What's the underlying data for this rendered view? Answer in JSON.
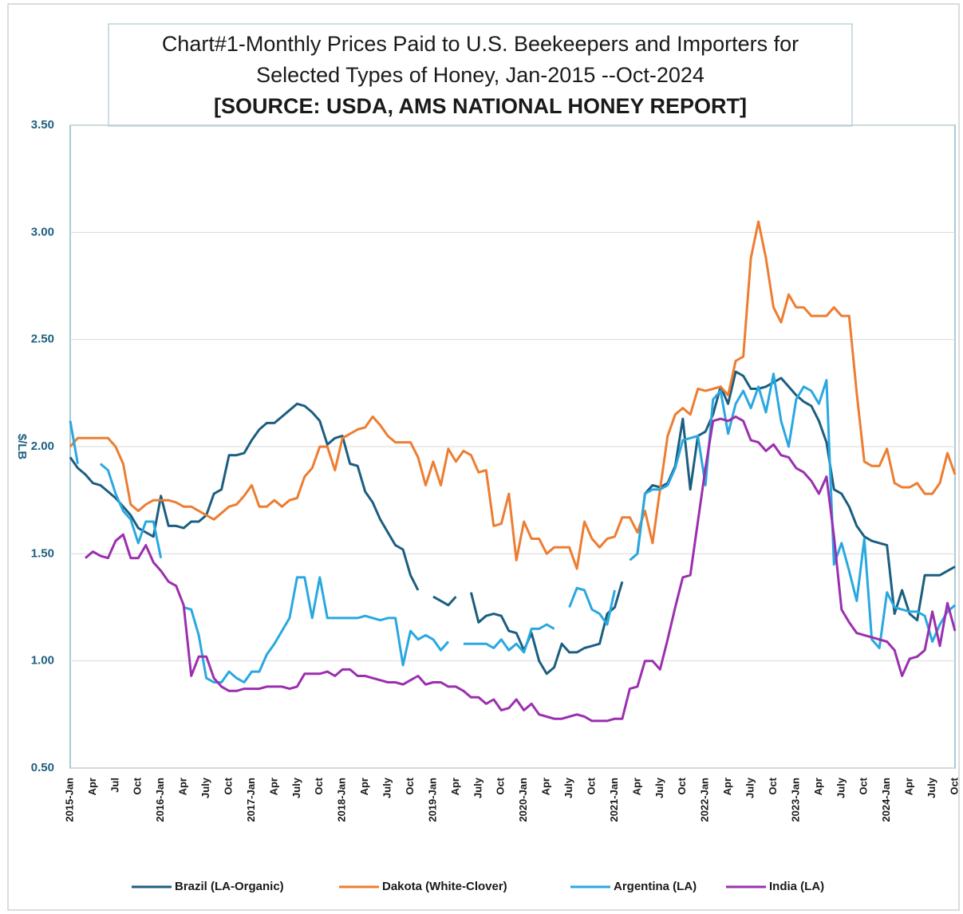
{
  "chart_data": {
    "type": "line",
    "title": [
      "Chart#1-Monthly Prices Paid to U.S. Beekeepers and Importers for",
      "Selected Types of Honey, Jan-2015 --Oct-2024"
    ],
    "subtitle": "[SOURCE: USDA, AMS  NATIONAL HONEY REPORT]",
    "y_label": "$/LB",
    "ylim": [
      0.5,
      3.5
    ],
    "yticks": [
      {
        "value": 0.5,
        "label": "0.50"
      },
      {
        "value": 1,
        "label": "1.00"
      },
      {
        "value": 1.5,
        "label": "1.50"
      },
      {
        "value": 2,
        "label": "2.00"
      },
      {
        "value": 2.5,
        "label": "2.50"
      },
      {
        "value": 3,
        "label": "3.00"
      },
      {
        "value": 3.5,
        "label": "3.50"
      }
    ],
    "grid": true,
    "legend": "bottom",
    "categories": [
      "2015-Jan",
      null,
      null,
      "Apr",
      null,
      null,
      "Jul",
      null,
      null,
      "Oct",
      null,
      null,
      "2016-Jan",
      null,
      null,
      "Apr",
      null,
      null,
      "July",
      null,
      null,
      "Oct",
      null,
      null,
      "2017-Jan",
      null,
      null,
      "Apr",
      null,
      null,
      "July",
      null,
      null,
      "Oct",
      null,
      null,
      "2018-Jan",
      null,
      null,
      "Apr",
      null,
      null,
      "July",
      null,
      null,
      "Oct",
      null,
      null,
      "2019-Jan",
      null,
      null,
      "Apr",
      null,
      null,
      "July",
      null,
      null,
      "Oct",
      null,
      null,
      "2020-Jan",
      null,
      null,
      "Apr",
      null,
      null,
      "July",
      null,
      null,
      "Oct",
      null,
      null,
      "2021-Jan",
      null,
      null,
      "Apr",
      null,
      null,
      "July",
      null,
      null,
      "Oct",
      null,
      null,
      "2022-Jan",
      null,
      null,
      "Apr",
      null,
      null,
      "July",
      null,
      null,
      "Oct",
      null,
      null,
      "2023-Jan",
      null,
      null,
      "Apr",
      null,
      null,
      "July",
      null,
      null,
      "Oct",
      null,
      null,
      "2024-Jan",
      null,
      null,
      "Apr",
      null,
      null,
      "July",
      null,
      null,
      "Oct"
    ],
    "series": [
      {
        "name": "Brazil (LA-Organic)",
        "color": "#1b5e80",
        "values": [
          1.95,
          1.9,
          1.87,
          1.83,
          1.82,
          1.79,
          1.76,
          1.72,
          1.68,
          1.62,
          1.6,
          1.58,
          1.77,
          1.63,
          1.63,
          1.62,
          1.65,
          1.65,
          1.68,
          1.78,
          1.8,
          1.96,
          1.96,
          1.97,
          2.03,
          2.08,
          2.11,
          2.11,
          2.14,
          2.17,
          2.2,
          2.19,
          2.16,
          2.12,
          2.01,
          2.04,
          2.05,
          1.92,
          1.91,
          1.79,
          1.74,
          1.66,
          1.6,
          1.54,
          1.52,
          1.4,
          1.33,
          null,
          1.3,
          1.28,
          1.26,
          1.3,
          null,
          1.32,
          1.18,
          1.21,
          1.22,
          1.21,
          1.14,
          1.13,
          1.05,
          1.13,
          1.0,
          0.94,
          0.97,
          1.08,
          1.04,
          1.04,
          1.06,
          1.07,
          1.08,
          1.22,
          1.25,
          1.37,
          null,
          1.5,
          1.78,
          1.82,
          1.81,
          1.83,
          1.91,
          2.13,
          1.8,
          2.05,
          2.07,
          2.15,
          2.28,
          2.2,
          2.35,
          2.33,
          2.27,
          2.27,
          2.28,
          2.3,
          2.32,
          2.28,
          2.24,
          2.21,
          2.19,
          2.12,
          2.02,
          1.8,
          1.78,
          1.72,
          1.63,
          1.58,
          1.56,
          1.55,
          1.54,
          1.22,
          1.33,
          1.22,
          1.19,
          1.4,
          1.4,
          1.4,
          1.42,
          1.44
        ]
      },
      {
        "name": "Dakota (White-Clover)",
        "color": "#ed7d31",
        "values": [
          2.0,
          2.04,
          2.04,
          2.04,
          2.04,
          2.04,
          2.0,
          1.92,
          1.73,
          1.7,
          1.73,
          1.75,
          1.75,
          1.75,
          1.74,
          1.72,
          1.72,
          1.7,
          1.68,
          1.66,
          1.69,
          1.72,
          1.73,
          1.77,
          1.82,
          1.72,
          1.72,
          1.75,
          1.72,
          1.75,
          1.76,
          1.86,
          1.9,
          2.0,
          2.0,
          1.89,
          2.04,
          2.06,
          2.08,
          2.09,
          2.14,
          2.1,
          2.05,
          2.02,
          2.02,
          2.02,
          1.95,
          1.82,
          1.93,
          1.82,
          1.99,
          1.93,
          1.98,
          1.96,
          1.88,
          1.89,
          1.63,
          1.64,
          1.78,
          1.47,
          1.65,
          1.57,
          1.57,
          1.5,
          1.53,
          1.53,
          1.53,
          1.43,
          1.65,
          1.57,
          1.53,
          1.57,
          1.58,
          1.67,
          1.67,
          1.6,
          1.7,
          1.55,
          1.8,
          2.05,
          2.15,
          2.18,
          2.15,
          2.27,
          2.26,
          2.27,
          2.28,
          2.24,
          2.4,
          2.42,
          2.88,
          3.05,
          2.88,
          2.65,
          2.58,
          2.71,
          2.65,
          2.65,
          2.61,
          2.61,
          2.61,
          2.65,
          2.61,
          2.61,
          2.25,
          1.93,
          1.91,
          1.91,
          1.99,
          1.83,
          1.81,
          1.81,
          1.83,
          1.78,
          1.78,
          1.83,
          1.97,
          1.87
        ]
      },
      {
        "name": "Argentina (LA)",
        "color": "#29a8e0",
        "values": [
          2.12,
          1.92,
          null,
          null,
          1.92,
          1.89,
          1.78,
          1.7,
          1.66,
          1.55,
          1.65,
          1.65,
          1.48,
          null,
          null,
          1.25,
          1.24,
          1.12,
          0.92,
          0.9,
          0.9,
          0.95,
          0.92,
          0.9,
          0.95,
          0.95,
          1.03,
          1.08,
          1.14,
          1.2,
          1.39,
          1.39,
          1.2,
          1.39,
          1.2,
          1.2,
          1.2,
          1.2,
          1.2,
          1.21,
          1.2,
          1.19,
          1.2,
          1.2,
          0.98,
          1.14,
          1.1,
          1.12,
          1.1,
          1.05,
          1.09,
          null,
          1.08,
          1.08,
          1.08,
          1.08,
          1.06,
          1.1,
          1.05,
          1.08,
          1.04,
          1.15,
          1.15,
          1.17,
          1.15,
          null,
          1.25,
          1.34,
          1.33,
          1.24,
          1.22,
          1.17,
          1.33,
          null,
          1.47,
          1.5,
          1.78,
          1.8,
          1.8,
          1.82,
          1.9,
          2.03,
          2.04,
          2.05,
          1.82,
          2.22,
          2.26,
          2.06,
          2.2,
          2.26,
          2.18,
          2.28,
          2.16,
          2.34,
          2.12,
          2.0,
          2.22,
          2.28,
          2.26,
          2.2,
          2.31,
          1.45,
          1.55,
          1.42,
          1.28,
          1.57,
          1.1,
          1.06,
          1.32,
          1.25,
          1.24,
          1.23,
          1.23,
          1.21,
          1.09,
          1.17,
          1.23,
          1.26
        ]
      },
      {
        "name": "India (LA)",
        "color": "#9b2fae",
        "values": [
          null,
          null,
          1.48,
          1.51,
          1.49,
          1.48,
          1.56,
          1.59,
          1.48,
          1.48,
          1.54,
          1.46,
          1.42,
          1.37,
          1.35,
          1.26,
          0.93,
          1.02,
          1.02,
          0.92,
          0.88,
          0.86,
          0.86,
          0.87,
          0.87,
          0.87,
          0.88,
          0.88,
          0.88,
          0.87,
          0.88,
          0.94,
          0.94,
          0.94,
          0.95,
          0.93,
          0.96,
          0.96,
          0.93,
          0.93,
          0.92,
          0.91,
          0.9,
          0.9,
          0.89,
          0.91,
          0.93,
          0.89,
          0.9,
          0.9,
          0.88,
          0.88,
          0.86,
          0.83,
          0.83,
          0.8,
          0.82,
          0.77,
          0.78,
          0.82,
          0.77,
          0.8,
          0.75,
          0.74,
          0.73,
          0.73,
          0.74,
          0.75,
          0.74,
          0.72,
          0.72,
          0.72,
          0.73,
          0.73,
          0.87,
          0.88,
          1.0,
          1.0,
          0.96,
          1.1,
          1.25,
          1.39,
          1.4,
          1.65,
          1.9,
          2.12,
          2.13,
          2.12,
          2.14,
          2.12,
          2.03,
          2.02,
          1.98,
          2.01,
          1.96,
          1.95,
          1.9,
          1.88,
          1.84,
          1.78,
          1.86,
          1.58,
          1.24,
          1.18,
          1.13,
          1.12,
          1.11,
          1.1,
          1.09,
          1.05,
          0.93,
          1.01,
          1.02,
          1.05,
          1.23,
          1.07,
          1.27,
          1.14
        ]
      }
    ]
  }
}
